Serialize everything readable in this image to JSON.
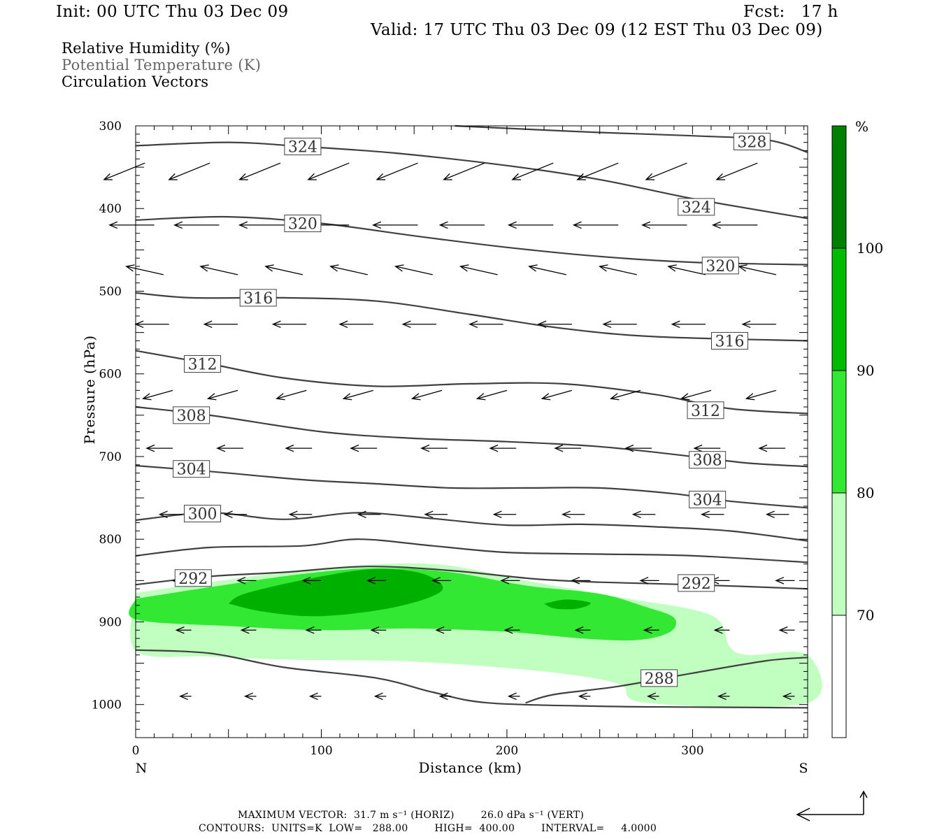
{
  "header": {
    "init": "Init: 00 UTC Thu 03 Dec 09",
    "fcst": "Fcst:   17 h",
    "valid": "Valid: 17 UTC Thu 03 Dec 09 (12 EST Thu 03 Dec 09)"
  },
  "fields": [
    {
      "label": "Relative Humidity (%)",
      "color": "#000000"
    },
    {
      "label": "Potential Temperature (K)",
      "color": "#666666"
    },
    {
      "label": "Circulation Vectors",
      "color": "#000000"
    }
  ],
  "footer": {
    "line1": "MAXIMUM VECTOR:  31.7 m s⁻¹ (HORIZ)        26.0 dPa s⁻¹ (VERT)",
    "line2": "CONTOURS:  UNITS=K  LOW=   288.00        HIGH=  400.00        INTERVAL=     4.0000"
  },
  "chart_data": {
    "type": "cross-section",
    "xlabel": "Distance (km)",
    "ylabel": "Pressure (hPa)",
    "xlim": [
      0,
      362
    ],
    "ylim": [
      1040,
      300
    ],
    "x_ticks": [
      0,
      100,
      200,
      300
    ],
    "y_ticks": [
      300,
      400,
      500,
      600,
      700,
      800,
      900,
      1000
    ],
    "x_end_labels": {
      "left": "N",
      "right": "S"
    },
    "colorbar": {
      "unit": "%",
      "levels": [
        70,
        80,
        90,
        100
      ],
      "colors": [
        "#ffffff",
        "#c0ffc0",
        "#33e833",
        "#00bb00",
        "#008000"
      ]
    },
    "rh_fill": [
      {
        "level": 70,
        "color": "#c0ffc0",
        "points": [
          [
            0,
            865
          ],
          [
            40,
            852
          ],
          [
            100,
            835
          ],
          [
            160,
            830
          ],
          [
            210,
            850
          ],
          [
            260,
            870
          ],
          [
            300,
            885
          ],
          [
            315,
            900
          ],
          [
            320,
            930
          ],
          [
            330,
            940
          ],
          [
            362,
            940
          ],
          [
            362,
            998
          ],
          [
            275,
            998
          ],
          [
            260,
            975
          ],
          [
            220,
            960
          ],
          [
            150,
            948
          ],
          [
            90,
            946
          ],
          [
            40,
            942
          ],
          [
            0,
            935
          ]
        ]
      },
      {
        "level": 80,
        "color": "#33e833",
        "points": [
          [
            0,
            872
          ],
          [
            40,
            858
          ],
          [
            90,
            842
          ],
          [
            130,
            835
          ],
          [
            170,
            840
          ],
          [
            210,
            856
          ],
          [
            250,
            866
          ],
          [
            275,
            882
          ],
          [
            290,
            895
          ],
          [
            288,
            912
          ],
          [
            270,
            922
          ],
          [
            240,
            920
          ],
          [
            200,
            912
          ],
          [
            150,
            908
          ],
          [
            100,
            910
          ],
          [
            50,
            905
          ],
          [
            0,
            897
          ]
        ]
      },
      {
        "level": 90,
        "color": "#00b000",
        "points": [
          [
            50,
            878
          ],
          [
            60,
            865
          ],
          [
            100,
            845
          ],
          [
            130,
            836
          ],
          [
            155,
            842
          ],
          [
            165,
            862
          ],
          [
            140,
            882
          ],
          [
            100,
            893
          ],
          [
            70,
            888
          ]
        ]
      },
      {
        "level": 90,
        "color": "#00b000",
        "points": [
          [
            220,
            878
          ],
          [
            232,
            873
          ],
          [
            245,
            877
          ],
          [
            238,
            884
          ],
          [
            226,
            884
          ]
        ]
      }
    ],
    "theta_contours": [
      {
        "value": 328,
        "points": [
          [
            172,
            300
          ],
          [
            200,
            303
          ],
          [
            250,
            308
          ],
          [
            300,
            312
          ],
          [
            340,
            317
          ],
          [
            362,
            332
          ]
        ],
        "labels": [
          [
            332,
            319
          ]
        ]
      },
      {
        "value": 324,
        "points": [
          [
            0,
            324
          ],
          [
            50,
            320
          ],
          [
            90,
            325
          ],
          [
            140,
            333
          ],
          [
            200,
            348
          ],
          [
            250,
            365
          ],
          [
            300,
            388
          ],
          [
            362,
            412
          ]
        ],
        "labels": [
          [
            90,
            325
          ],
          [
            302,
            398
          ]
        ]
      },
      {
        "value": 320,
        "points": [
          [
            0,
            414
          ],
          [
            50,
            410
          ],
          [
            100,
            418
          ],
          [
            150,
            433
          ],
          [
            200,
            447
          ],
          [
            250,
            458
          ],
          [
            300,
            465
          ],
          [
            362,
            468
          ]
        ],
        "labels": [
          [
            90,
            418
          ],
          [
            315,
            469
          ]
        ]
      },
      {
        "value": 316,
        "points": [
          [
            0,
            502
          ],
          [
            30,
            508
          ],
          [
            80,
            508
          ],
          [
            130,
            512
          ],
          [
            180,
            528
          ],
          [
            230,
            545
          ],
          [
            280,
            555
          ],
          [
            362,
            560
          ]
        ],
        "labels": [
          [
            66,
            508
          ],
          [
            320,
            560
          ]
        ]
      },
      {
        "value": 312,
        "points": [
          [
            0,
            572
          ],
          [
            40,
            588
          ],
          [
            80,
            605
          ],
          [
            130,
            615
          ],
          [
            180,
            612
          ],
          [
            230,
            612
          ],
          [
            280,
            625
          ],
          [
            320,
            642
          ],
          [
            362,
            648
          ]
        ],
        "labels": [
          [
            36,
            588
          ],
          [
            307,
            644
          ]
        ]
      },
      {
        "value": 308,
        "points": [
          [
            0,
            640
          ],
          [
            40,
            650
          ],
          [
            100,
            670
          ],
          [
            150,
            678
          ],
          [
            200,
            682
          ],
          [
            250,
            688
          ],
          [
            300,
            700
          ],
          [
            330,
            708
          ],
          [
            362,
            712
          ]
        ],
        "labels": [
          [
            30,
            650
          ],
          [
            308,
            704
          ]
        ]
      },
      {
        "value": 304,
        "points": [
          [
            0,
            711
          ],
          [
            40,
            718
          ],
          [
            90,
            728
          ],
          [
            130,
            733
          ],
          [
            170,
            738
          ],
          [
            210,
            738
          ],
          [
            250,
            738
          ],
          [
            290,
            745
          ],
          [
            320,
            754
          ],
          [
            362,
            762
          ]
        ],
        "labels": [
          [
            30,
            715
          ],
          [
            308,
            752
          ]
        ]
      },
      {
        "value": 300,
        "points": [
          [
            0,
            777
          ],
          [
            40,
            768
          ],
          [
            80,
            776
          ],
          [
            120,
            768
          ],
          [
            160,
            775
          ],
          [
            200,
            783
          ],
          [
            240,
            782
          ],
          [
            280,
            785
          ],
          [
            320,
            790
          ],
          [
            362,
            802
          ]
        ],
        "labels": [
          [
            36,
            769
          ]
        ]
      },
      {
        "value": 296,
        "points": [
          [
            0,
            820
          ],
          [
            40,
            810
          ],
          [
            90,
            808
          ],
          [
            120,
            800
          ],
          [
            160,
            808
          ],
          [
            200,
            816
          ],
          [
            250,
            818
          ],
          [
            300,
            820
          ],
          [
            362,
            828
          ]
        ],
        "labels": []
      },
      {
        "value": 292,
        "points": [
          [
            0,
            855
          ],
          [
            40,
            845
          ],
          [
            80,
            840
          ],
          [
            125,
            833
          ],
          [
            170,
            838
          ],
          [
            215,
            848
          ],
          [
            250,
            852
          ],
          [
            300,
            855
          ],
          [
            362,
            860
          ]
        ],
        "labels": [
          [
            31,
            847
          ],
          [
            302,
            853
          ]
        ]
      },
      {
        "value": 288,
        "points": [
          [
            0,
            934
          ],
          [
            40,
            938
          ],
          [
            80,
            955
          ],
          [
            130,
            968
          ],
          [
            160,
            985
          ],
          [
            190,
            998
          ],
          [
            250,
            1002
          ],
          [
            300,
            1003
          ],
          [
            362,
            1004
          ]
        ],
        "labels": []
      },
      {
        "value": 288,
        "points": [
          [
            210,
            998
          ],
          [
            225,
            988
          ],
          [
            260,
            978
          ],
          [
            300,
            962
          ],
          [
            340,
            947
          ],
          [
            362,
            943
          ]
        ],
        "labels": [
          [
            282,
            968
          ]
        ]
      }
    ],
    "vectors": [
      {
        "p": 345,
        "xs": [
          5,
          40,
          78,
          115,
          152,
          188,
          225,
          260,
          297,
          335
        ],
        "dx": -22,
        "dp": 2
      },
      {
        "p": 420,
        "xs": [
          10,
          45,
          80,
          115,
          152,
          188,
          225,
          260,
          297,
          335
        ],
        "dx": -24,
        "dp": 0
      },
      {
        "p": 480,
        "xs": [
          15,
          55,
          90,
          125,
          160,
          195,
          232,
          270,
          307,
          345
        ],
        "dx": -20,
        "dp": -1
      },
      {
        "p": 540,
        "xs": [
          18,
          55,
          92,
          128,
          162,
          198,
          235,
          270,
          307,
          345
        ],
        "dx": -18,
        "dp": 0
      },
      {
        "p": 620,
        "xs": [
          20,
          55,
          92,
          128,
          165,
          200,
          235,
          272,
          310,
          345
        ],
        "dx": -16,
        "dp": 1
      },
      {
        "p": 690,
        "xs": [
          20,
          58,
          95,
          130,
          168,
          205,
          240,
          278,
          315,
          350
        ],
        "dx": -14,
        "dp": 0
      },
      {
        "p": 770,
        "xs": [
          25,
          60,
          95,
          132,
          168,
          205,
          242,
          280,
          317,
          352
        ],
        "dx": -12,
        "dp": 0
      },
      {
        "p": 850,
        "xs": [
          30,
          65,
          100,
          135,
          170,
          207,
          245,
          282,
          320,
          355
        ],
        "dx": -10,
        "dp": 0
      },
      {
        "p": 910,
        "xs": [
          30,
          65,
          100,
          135,
          170,
          207,
          245,
          282,
          320,
          355
        ],
        "dx": -8,
        "dp": 0
      },
      {
        "p": 990,
        "xs": [
          30,
          65,
          100,
          135,
          170,
          207,
          245,
          282,
          320,
          355
        ],
        "dx": -6,
        "dp": 0
      }
    ]
  }
}
